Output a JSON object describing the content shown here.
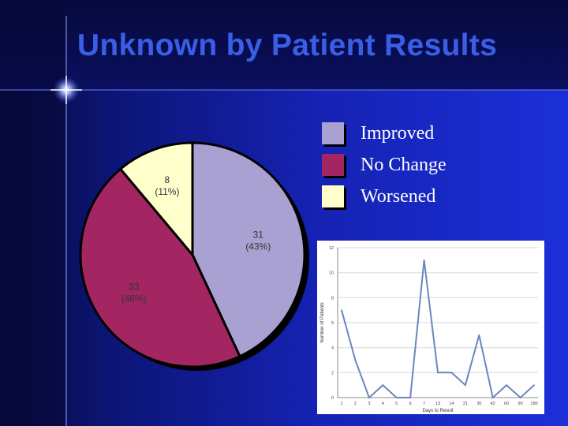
{
  "slide": {
    "title": "Unknown by Patient Results",
    "colors": {
      "background": "#0b1170",
      "title": "#3a5ee6",
      "legend_text": "#ffffff"
    }
  },
  "chart_data": [
    {
      "type": "pie",
      "categories": [
        "Improved",
        "No Change",
        "Worsened"
      ],
      "values": [
        31,
        33,
        8
      ],
      "data_labels": [
        {
          "count": "31",
          "percent": "(43%)"
        },
        {
          "count": "33",
          "percent": "(46%)"
        },
        {
          "count": "8",
          "percent": "(11%)"
        }
      ],
      "colors": [
        "#a9a1d1",
        "#a32562",
        "#ffffcc"
      ],
      "legend": "right"
    },
    {
      "type": "line",
      "categories": [
        "1",
        "2",
        "3",
        "4",
        "5",
        "6",
        "7",
        "13",
        "14",
        "21",
        "30",
        "42",
        "60",
        "90",
        "180"
      ],
      "series": [
        {
          "values": [
            7,
            3,
            0,
            1,
            0,
            0,
            11,
            2,
            2,
            1,
            5,
            0,
            1,
            0,
            1
          ],
          "color": "#6b86c0"
        }
      ],
      "yticks": [
        "0",
        "2",
        "4",
        "6",
        "8",
        "10",
        "12"
      ],
      "ylim": [
        0,
        12
      ],
      "xlabel": "Days to Result",
      "ylabel": "Number of Patients",
      "grid": true
    }
  ]
}
